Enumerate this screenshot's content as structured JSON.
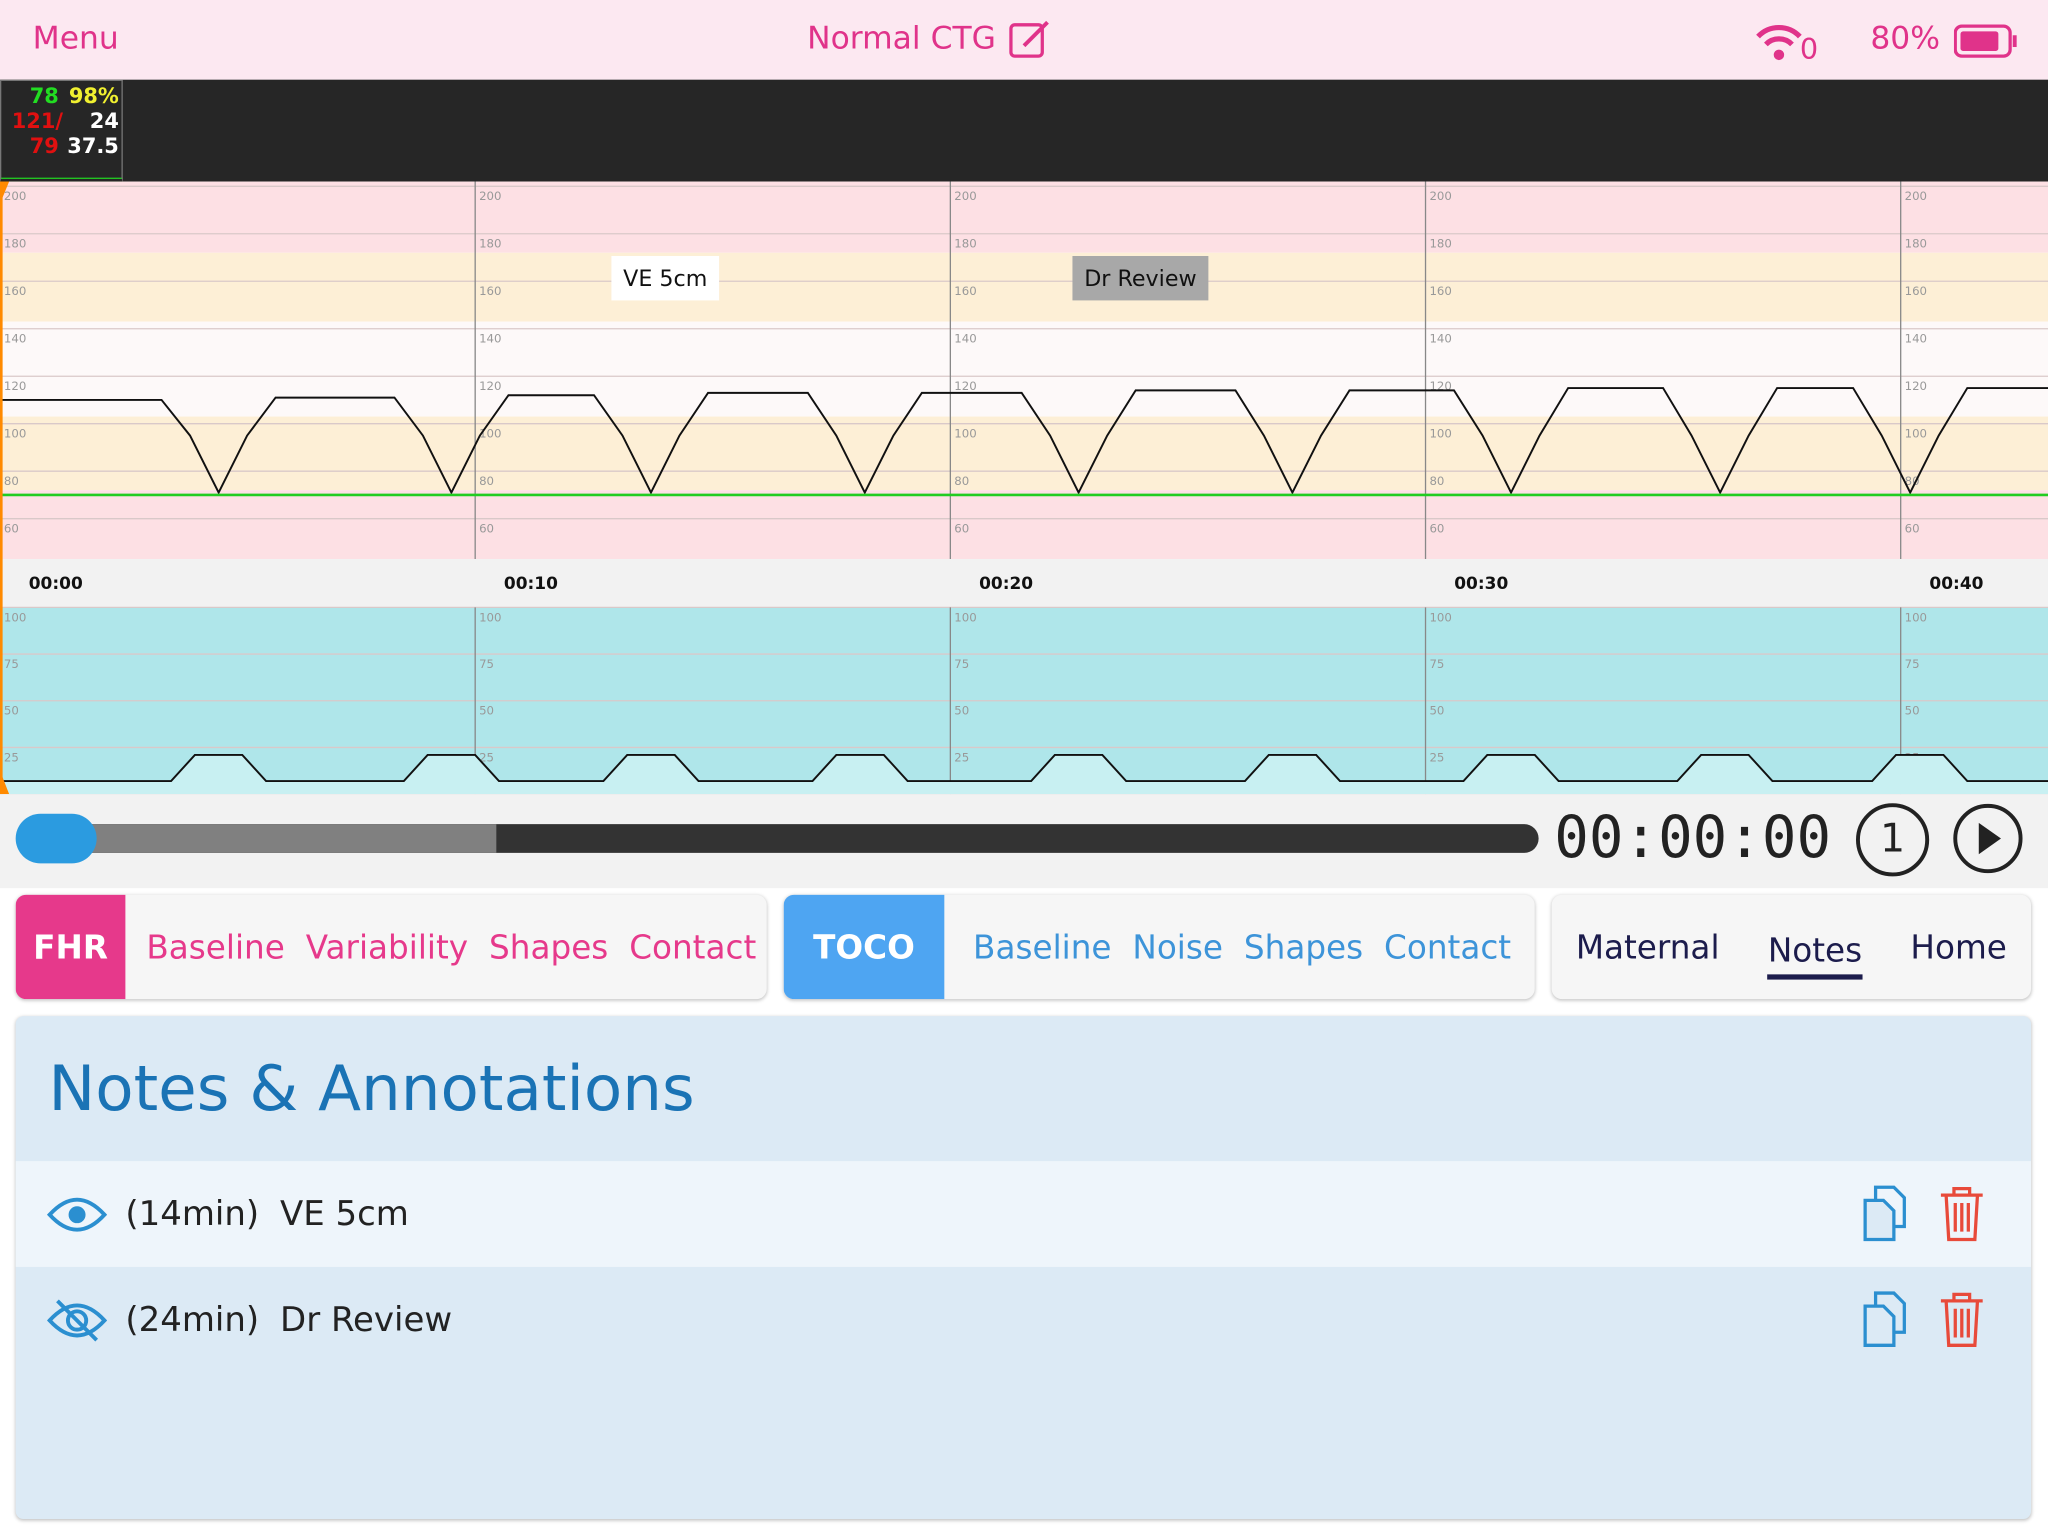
{
  "status_bar": {
    "menu": "Menu",
    "title": "Normal CTG",
    "wifi_count": "0",
    "battery": "80%"
  },
  "vitals": {
    "maternal_hr": "78",
    "spo2": "98%",
    "bp_systolic": "121/",
    "resp": "24",
    "bp_diastolic": "79",
    "temp": "37.5"
  },
  "chart_data": [
    {
      "type": "line",
      "xlim": [
        0,
        43.1
      ],
      "ylim": [
        43,
        202
      ],
      "xticks": [
        {
          "value": 0,
          "label": "00:00"
        },
        {
          "value": 10,
          "label": "00:10"
        },
        {
          "value": 20,
          "label": "00:20"
        },
        {
          "value": 30,
          "label": "00:30"
        },
        {
          "value": 40,
          "label": "00:40"
        }
      ],
      "yticks": [
        60,
        80,
        100,
        120,
        140,
        160,
        180,
        200
      ],
      "grid": true,
      "zones": [
        {
          "from": 172,
          "to": 202,
          "color": "#fde0e4"
        },
        {
          "from": 143,
          "to": 172,
          "color": "#fdefd6"
        },
        {
          "from": 103,
          "to": 143,
          "color": "#fdf9f9"
        },
        {
          "from": 72,
          "to": 103,
          "color": "#fdefd6"
        },
        {
          "from": 43,
          "to": 72,
          "color": "#fde0e4"
        }
      ],
      "x": [
        0,
        3.4,
        4.0,
        4.6,
        5.2,
        5.8,
        8.3,
        8.9,
        9.5,
        10.1,
        10.7,
        12.5,
        13.1,
        13.7,
        14.3,
        14.9,
        17.0,
        17.6,
        18.2,
        18.8,
        19.4,
        21.5,
        22.1,
        22.7,
        23.3,
        23.9,
        26.0,
        26.6,
        27.2,
        27.8,
        28.4,
        30.6,
        31.2,
        31.8,
        32.4,
        33.0,
        35.0,
        35.6,
        36.2,
        36.8,
        37.4,
        39.0,
        39.6,
        40.2,
        40.8,
        41.4,
        43.1
      ],
      "series": [
        {
          "color": "#111111",
          "values": [
            110,
            110,
            95,
            71,
            95,
            111,
            111,
            95,
            71,
            95,
            112,
            112,
            95,
            71,
            95,
            113,
            113,
            95,
            71,
            95,
            113,
            113,
            95,
            71,
            95,
            114,
            114,
            95,
            71,
            95,
            114,
            114,
            95,
            71,
            95,
            115,
            115,
            95,
            71,
            95,
            115,
            115,
            95,
            71,
            95,
            115,
            115
          ]
        },
        {
          "color": "#22cc22",
          "values": [
            70,
            70,
            70,
            70,
            70,
            70,
            70,
            70,
            70,
            70,
            70,
            70,
            70,
            70,
            70,
            70,
            70,
            70,
            70,
            70,
            70,
            70,
            70,
            70,
            70,
            70,
            70,
            70,
            70,
            70,
            70,
            70,
            70,
            70,
            70,
            70,
            70,
            70,
            70,
            70,
            70,
            70,
            70,
            70,
            70,
            70,
            70
          ]
        }
      ],
      "annotations": [
        {
          "x": 14,
          "text": "VE 5cm",
          "visible": true
        },
        {
          "x": 24,
          "text": "Dr Review",
          "visible": false
        }
      ]
    },
    {
      "type": "area",
      "xlim": [
        0,
        43.1
      ],
      "ylim": [
        0,
        100
      ],
      "yticks": [
        0,
        25,
        50,
        75,
        100
      ],
      "grid": true,
      "background": "#afe6ea",
      "x": [
        0,
        3.6,
        4.1,
        5.1,
        5.6,
        8.5,
        9.0,
        10.0,
        10.5,
        12.7,
        13.2,
        14.2,
        14.7,
        17.1,
        17.6,
        18.6,
        19.1,
        21.7,
        22.2,
        23.2,
        23.7,
        26.2,
        26.7,
        27.7,
        28.2,
        30.8,
        31.3,
        32.3,
        32.8,
        35.3,
        35.8,
        36.8,
        37.3,
        39.4,
        39.9,
        40.9,
        41.4,
        43.1
      ],
      "series": [
        {
          "color": "#111111",
          "fill": "#c8f0f2",
          "values": [
            7,
            7,
            21,
            21,
            7,
            7,
            21,
            21,
            7,
            7,
            21,
            21,
            7,
            7,
            21,
            21,
            7,
            7,
            21,
            21,
            7,
            7,
            21,
            21,
            7,
            7,
            21,
            21,
            7,
            7,
            21,
            21,
            7,
            7,
            21,
            21,
            7,
            7
          ]
        }
      ]
    }
  ],
  "controls": {
    "time": "00:00:00",
    "speed": "1"
  },
  "fhr_tabs": {
    "label": "FHR",
    "items": [
      "Baseline",
      "Variability",
      "Shapes",
      "Contact"
    ]
  },
  "toco_tabs": {
    "label": "TOCO",
    "items": [
      "Baseline",
      "Noise",
      "Shapes",
      "Contact"
    ]
  },
  "nav_tabs": {
    "items": [
      "Maternal",
      "Notes",
      "Home"
    ]
  },
  "notes": {
    "title": "Notes & Annotations",
    "items": [
      {
        "time": "(14min)",
        "text": "VE 5cm",
        "visible": true
      },
      {
        "time": "(24min)",
        "text": "Dr Review",
        "visible": false
      }
    ]
  }
}
